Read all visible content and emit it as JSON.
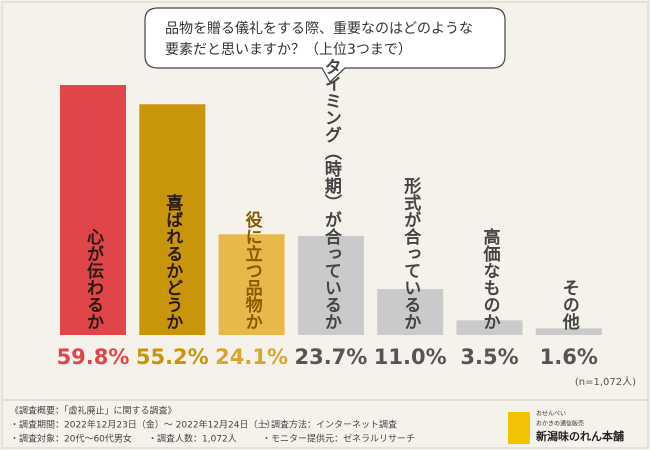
{
  "chart_data": {
    "type": "bar",
    "title_lines": [
      "品物を贈る儀礼をする際、重要なのはどのような",
      "要素だと思いますか？（上位3つまで）"
    ],
    "categories": [
      "心が伝わるか",
      "喜ばれるかどうか",
      "役に立つ品物か",
      "タイミング（時期）が合っているか",
      "形式が合っているか",
      "高価なものか",
      "その他"
    ],
    "values": [
      59.8,
      55.2,
      24.1,
      23.7,
      11.0,
      3.5,
      1.6
    ],
    "value_labels": [
      "59.8%",
      "55.2%",
      "24.1%",
      "23.7%",
      "11.0%",
      "3.5%",
      "1.6%"
    ],
    "colors": [
      "#e0454a",
      "#c9950a",
      "#e6b94a",
      "#cacaca",
      "#cacaca",
      "#cacaca",
      "#cacaca"
    ],
    "label_colors": [
      "#e0454a",
      "#c9950a",
      "#d9a52c",
      "#555555",
      "#555555",
      "#555555",
      "#555555"
    ],
    "note": "(n=1,072人)",
    "footer": {
      "heading": "《調査概要：「虚礼廃止」に関する調査》",
      "items": [
        "・調査期間：2022年12月23日（金）～ 2022年12月24日（土）",
        "・調査方法：インターネット調査",
        "・調査対象：20代～60代男女",
        "・調査人数：1,072人",
        "・モニター提供元：ゼネラルリサーチ"
      ]
    },
    "logo": {
      "small1": "おせんべい",
      "small2": "おかきの通信販売",
      "name": "新潟味のれん本舗"
    }
  }
}
